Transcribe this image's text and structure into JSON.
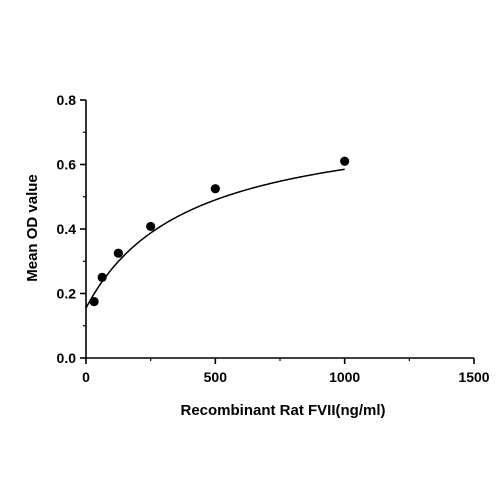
{
  "chart_data": {
    "type": "scatter",
    "title": "",
    "xlabel": "Recombinant Rat FVII(ng/ml)",
    "ylabel": "Mean OD value",
    "xlim": [
      0,
      1500
    ],
    "ylim": [
      0,
      0.8
    ],
    "xticks": [
      0,
      500,
      1000,
      1500
    ],
    "xtick_labels": [
      "0",
      "500",
      "1000",
      "1500"
    ],
    "yticks": [
      0.0,
      0.2,
      0.4,
      0.6,
      0.8
    ],
    "ytick_labels": [
      "0.0",
      "0.2",
      "0.4",
      "0.6",
      "0.8"
    ],
    "grid": false,
    "legend": "none",
    "marker_color": "#000000",
    "line_color": "#000000",
    "series": [
      {
        "x": [
          31.25,
          62.5,
          125,
          250,
          500,
          1000
        ],
        "y": [
          0.175,
          0.25,
          0.325,
          0.408,
          0.525,
          0.61
        ],
        "fit_curve": true
      }
    ]
  }
}
